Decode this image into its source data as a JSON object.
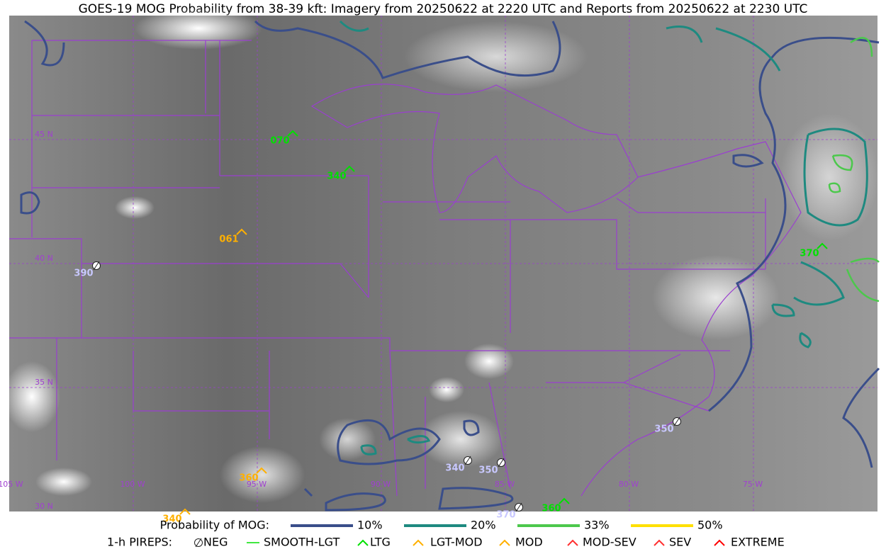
{
  "title": "GOES-19 MOG Probability from 38-39 kft: Imagery from 20250622 at 2220 UTC and Reports from 20250622 at 2230 UTC",
  "map": {
    "lat_labels": [
      "45 N",
      "40 N",
      "35 N",
      "30 N"
    ],
    "lon_labels": [
      "105 W",
      "100 W",
      "95 W",
      "90 W",
      "85 W",
      "80 W",
      "75 W"
    ],
    "reports": [
      {
        "level": "070",
        "type": "LTG"
      },
      {
        "level": "340",
        "type": "LTG"
      },
      {
        "level": "061",
        "type": "MOD"
      },
      {
        "level": "390",
        "type": "NEG"
      },
      {
        "level": "370",
        "type": "LTG"
      },
      {
        "level": "350",
        "type": "NEG"
      },
      {
        "level": "340",
        "type": "NEG"
      },
      {
        "level": "350",
        "type": "NEG"
      },
      {
        "level": "360",
        "type": "MOD"
      },
      {
        "level": "340",
        "type": "MOD"
      },
      {
        "level": "370",
        "type": "NEG"
      },
      {
        "level": "360",
        "type": "LTG"
      }
    ]
  },
  "legend": {
    "probability_title": "Probability of MOG:",
    "probability_levels": [
      {
        "label": "10%",
        "color": "#3a4e8a"
      },
      {
        "label": "20%",
        "color": "#1e8a80"
      },
      {
        "label": "33%",
        "color": "#4cc84c"
      },
      {
        "label": "50%",
        "color": "#ffe000"
      }
    ],
    "pireps_title": "1-h PIREPS:",
    "pirep_types": [
      {
        "label": "NEG",
        "color": "#c8c8ff"
      },
      {
        "label": "SMOOTH-LGT",
        "color": "#00e000"
      },
      {
        "label": "LTG",
        "color": "#00e000"
      },
      {
        "label": "LGT-MOD",
        "color": "#ffb000"
      },
      {
        "label": "MOD",
        "color": "#ffb000"
      },
      {
        "label": "MOD-SEV",
        "color": "#ff3030"
      },
      {
        "label": "SEV",
        "color": "#ff3030"
      },
      {
        "label": "EXTREME",
        "color": "#ff0000"
      }
    ]
  }
}
